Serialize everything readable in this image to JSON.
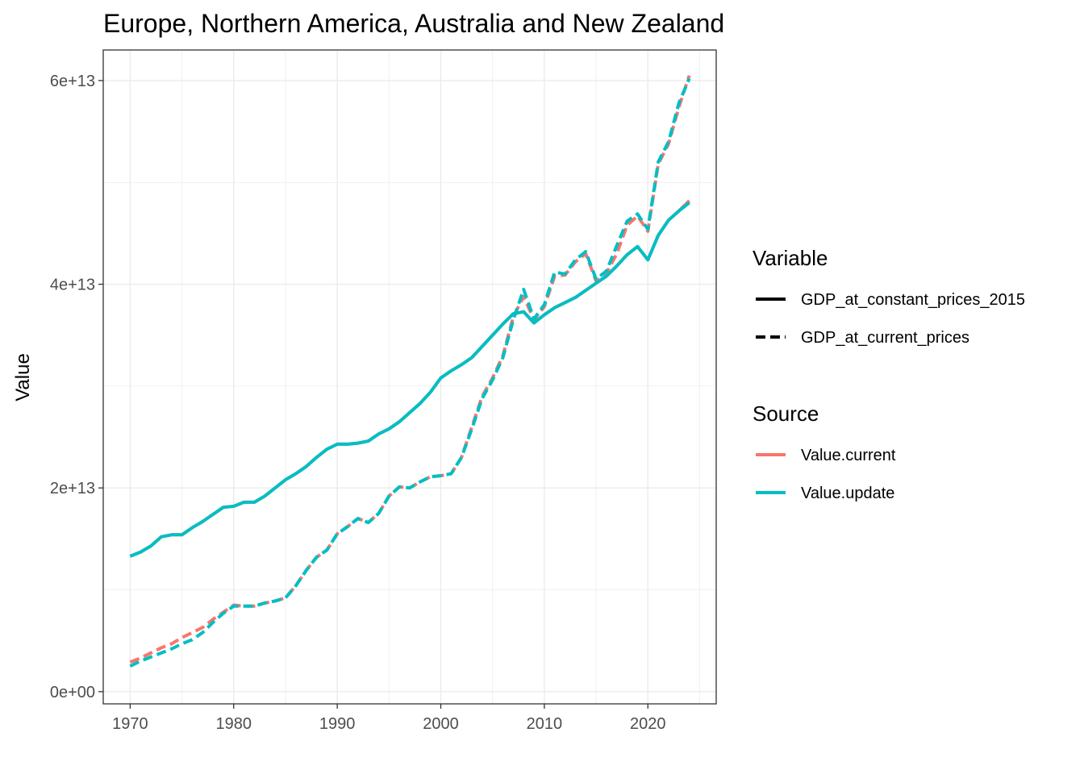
{
  "chart_data": {
    "type": "line",
    "title": "Europe, Northern America, Australia and New Zealand",
    "xlabel": "",
    "ylabel": "Value",
    "xlim": [
      1967.4,
      2026.6
    ],
    "ylim": [
      -1200000000000.0,
      63000000000000.0
    ],
    "x_ticks": [
      1970,
      1980,
      1990,
      2000,
      2010,
      2020
    ],
    "x_tick_labels": [
      "1970",
      "1980",
      "1990",
      "2000",
      "2010",
      "2020"
    ],
    "y_ticks": [
      0,
      20000000000000.0,
      40000000000000.0,
      60000000000000.0
    ],
    "y_tick_labels": [
      "0e+00",
      "2e+13",
      "4e+13",
      "6e+13"
    ],
    "y_minor_ticks": [
      10000000000000.0,
      30000000000000.0,
      50000000000000.0
    ],
    "grid": true,
    "legend_position": "right",
    "colors": {
      "Value.current": "#F8766D",
      "Value.update": "#00BFC4"
    },
    "legend": {
      "variable_title": "Variable",
      "variable_items": [
        "GDP_at_constant_prices_2015",
        "GDP_at_current_prices"
      ],
      "source_title": "Source",
      "source_items": [
        "Value.current",
        "Value.update"
      ]
    },
    "x": [
      1970,
      1971,
      1972,
      1973,
      1974,
      1975,
      1976,
      1977,
      1978,
      1979,
      1980,
      1981,
      1982,
      1983,
      1984,
      1985,
      1986,
      1987,
      1988,
      1989,
      1990,
      1991,
      1992,
      1993,
      1994,
      1995,
      1996,
      1997,
      1998,
      1999,
      2000,
      2001,
      2002,
      2003,
      2004,
      2005,
      2006,
      2007,
      2008,
      2009,
      2010,
      2011,
      2012,
      2013,
      2014,
      2015,
      2016,
      2017,
      2018,
      2019,
      2020,
      2021,
      2022,
      2023,
      2024
    ],
    "series": [
      {
        "name": "GDP_at_constant_prices_2015 / Value.current",
        "variable": "GDP_at_constant_prices_2015",
        "source": "Value.current",
        "dash": "solid",
        "values": [
          13300000000000.0,
          13700000000000.0,
          14300000000000.0,
          15200000000000.0,
          15400000000000.0,
          15400000000000.0,
          16100000000000.0,
          16700000000000.0,
          17400000000000.0,
          18100000000000.0,
          18200000000000.0,
          18600000000000.0,
          18600000000000.0,
          19200000000000.0,
          20000000000000.0,
          20800000000000.0,
          21400000000000.0,
          22100000000000.0,
          23000000000000.0,
          23800000000000.0,
          24300000000000.0,
          24300000000000.0,
          24400000000000.0,
          24600000000000.0,
          25300000000000.0,
          25800000000000.0,
          26500000000000.0,
          27400000000000.0,
          28300000000000.0,
          29400000000000.0,
          30800000000000.0,
          31500000000000.0,
          32100000000000.0,
          32800000000000.0,
          33900000000000.0,
          35000000000000.0,
          36100000000000.0,
          37100000000000.0,
          37300000000000.0,
          36200000000000.0,
          37000000000000.0,
          37700000000000.0,
          38200000000000.0,
          38700000000000.0,
          39400000000000.0,
          40100000000000.0,
          40800000000000.0,
          41800000000000.0,
          42900000000000.0,
          43700000000000.0,
          42400000000000.0,
          44800000000000.0,
          46300000000000.0,
          47200000000000.0,
          48200000000000.0
        ]
      },
      {
        "name": "GDP_at_constant_prices_2015 / Value.update",
        "variable": "GDP_at_constant_prices_2015",
        "source": "Value.update",
        "dash": "solid",
        "values": [
          13300000000000.0,
          13700000000000.0,
          14300000000000.0,
          15200000000000.0,
          15400000000000.0,
          15400000000000.0,
          16100000000000.0,
          16700000000000.0,
          17400000000000.0,
          18100000000000.0,
          18200000000000.0,
          18600000000000.0,
          18600000000000.0,
          19200000000000.0,
          20000000000000.0,
          20800000000000.0,
          21400000000000.0,
          22100000000000.0,
          23000000000000.0,
          23800000000000.0,
          24300000000000.0,
          24300000000000.0,
          24400000000000.0,
          24600000000000.0,
          25300000000000.0,
          25800000000000.0,
          26500000000000.0,
          27400000000000.0,
          28300000000000.0,
          29400000000000.0,
          30800000000000.0,
          31500000000000.0,
          32100000000000.0,
          32800000000000.0,
          33900000000000.0,
          35000000000000.0,
          36100000000000.0,
          37100000000000.0,
          37300000000000.0,
          36200000000000.0,
          37000000000000.0,
          37700000000000.0,
          38200000000000.0,
          38700000000000.0,
          39400000000000.0,
          40100000000000.0,
          40800000000000.0,
          41800000000000.0,
          42900000000000.0,
          43700000000000.0,
          42400000000000.0,
          44800000000000.0,
          46300000000000.0,
          47200000000000.0,
          48000000000000.0
        ]
      },
      {
        "name": "GDP_at_current_prices / Value.current",
        "variable": "GDP_at_current_prices",
        "source": "Value.current",
        "dash": "dashed",
        "values": [
          2900000000000.0,
          3300000000000.0,
          3800000000000.0,
          4300000000000.0,
          4700000000000.0,
          5300000000000.0,
          5800000000000.0,
          6300000000000.0,
          7100000000000.0,
          7800000000000.0,
          8500000000000.0,
          8400000000000.0,
          8400000000000.0,
          8700000000000.0,
          8900000000000.0,
          9200000000000.0,
          10400000000000.0,
          11900000000000.0,
          13200000000000.0,
          13900000000000.0,
          15500000000000.0,
          16200000000000.0,
          17000000000000.0,
          16600000000000.0,
          17500000000000.0,
          19200000000000.0,
          20100000000000.0,
          20000000000000.0,
          20600000000000.0,
          21100000000000.0,
          21200000000000.0,
          21400000000000.0,
          23000000000000.0,
          26000000000000.0,
          29000000000000.0,
          30800000000000.0,
          33000000000000.0,
          36800000000000.0,
          38800000000000.0,
          36500000000000.0,
          37800000000000.0,
          40800000000000.0,
          40900000000000.0,
          42200000000000.0,
          43000000000000.0,
          40300000000000.0,
          41100000000000.0,
          43000000000000.0,
          45800000000000.0,
          46700000000000.0,
          45200000000000.0,
          51800000000000.0,
          53800000000000.0,
          57400000000000.0,
          60500000000000.0
        ]
      },
      {
        "name": "GDP_at_current_prices / Value.update",
        "variable": "GDP_at_current_prices",
        "source": "Value.update",
        "dash": "dashed",
        "values": [
          2500000000000.0,
          3000000000000.0,
          3400000000000.0,
          3800000000000.0,
          4200000000000.0,
          4700000000000.0,
          5100000000000.0,
          5800000000000.0,
          6800000000000.0,
          7700000000000.0,
          8400000000000.0,
          8400000000000.0,
          8400000000000.0,
          8700000000000.0,
          8900000000000.0,
          9200000000000.0,
          10400000000000.0,
          11900000000000.0,
          13200000000000.0,
          13900000000000.0,
          15500000000000.0,
          16200000000000.0,
          17000000000000.0,
          16600000000000.0,
          17500000000000.0,
          19200000000000.0,
          20100000000000.0,
          20000000000000.0,
          20600000000000.0,
          21100000000000.0,
          21200000000000.0,
          21400000000000.0,
          23000000000000.0,
          25800000000000.0,
          28800000000000.0,
          30600000000000.0,
          32800000000000.0,
          36500000000000.0,
          39500000000000.0,
          36600000000000.0,
          38000000000000.0,
          41200000000000.0,
          41000000000000.0,
          42400000000000.0,
          43200000000000.0,
          40500000000000.0,
          41300000000000.0,
          43800000000000.0,
          46200000000000.0,
          46900000000000.0,
          45400000000000.0,
          52000000000000.0,
          54000000000000.0,
          57800000000000.0,
          60200000000000.0
        ]
      }
    ]
  }
}
